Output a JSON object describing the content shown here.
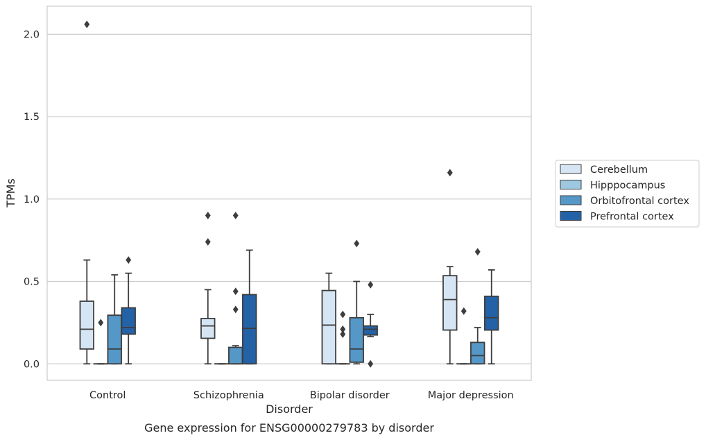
{
  "chart_data": {
    "type": "box",
    "title": "",
    "caption": "Gene expression for ENSG00000279783 by disorder",
    "xlabel": "Disorder",
    "ylabel": "TPMs",
    "ylim": [
      -0.1,
      2.17
    ],
    "yticks": [
      0.0,
      0.5,
      1.0,
      1.5,
      2.0
    ],
    "ytick_labels": [
      "0.0",
      "0.5",
      "1.0",
      "1.5",
      "2.0"
    ],
    "grid": "horizontal",
    "legend_position": "right",
    "categories": [
      "Control",
      "Schizophrenia",
      "Bipolar disorder",
      "Major depression"
    ],
    "series": [
      {
        "name": "Cerebellum",
        "color": "#d6e5f3",
        "boxes": [
          {
            "whislo": 0.0,
            "q1": 0.09,
            "med": 0.21,
            "q3": 0.38,
            "whishi": 0.63,
            "fliers": [
              2.06
            ]
          },
          {
            "whislo": 0.0,
            "q1": 0.155,
            "med": 0.23,
            "q3": 0.275,
            "whishi": 0.45,
            "fliers": [
              0.74,
              0.9
            ]
          },
          {
            "whislo": 0.0,
            "q1": 0.0,
            "med": 0.235,
            "q3": 0.445,
            "whishi": 0.55,
            "fliers": []
          },
          {
            "whislo": 0.0,
            "q1": 0.205,
            "med": 0.39,
            "q3": 0.535,
            "whishi": 0.59,
            "fliers": [
              1.16
            ]
          }
        ]
      },
      {
        "name": "Hipppocampus",
        "color": "#9ec8e0",
        "boxes": [
          {
            "whislo": 0.0,
            "q1": 0.0,
            "med": 0.0,
            "q3": 0.0,
            "whishi": 0.0,
            "fliers": [
              0.25
            ]
          },
          {
            "whislo": 0.0,
            "q1": 0.0,
            "med": 0.0,
            "q3": 0.0,
            "whishi": 0.0,
            "fliers": []
          },
          {
            "whislo": 0.0,
            "q1": 0.0,
            "med": 0.0,
            "q3": 0.0,
            "whishi": 0.0,
            "fliers": [
              0.18,
              0.21,
              0.3
            ]
          },
          {
            "whislo": 0.0,
            "q1": 0.0,
            "med": 0.0,
            "q3": 0.0,
            "whishi": 0.0,
            "fliers": [
              0.32
            ]
          }
        ]
      },
      {
        "name": "Orbitofrontal cortex",
        "color": "#5597c7",
        "boxes": [
          {
            "whislo": 0.0,
            "q1": 0.0,
            "med": 0.09,
            "q3": 0.295,
            "whishi": 0.54,
            "fliers": []
          },
          {
            "whislo": 0.0,
            "q1": 0.0,
            "med": 0.0,
            "q3": 0.1,
            "whishi": 0.11,
            "fliers": [
              0.33,
              0.44,
              0.9
            ]
          },
          {
            "whislo": 0.0,
            "q1": 0.01,
            "med": 0.09,
            "q3": 0.28,
            "whishi": 0.5,
            "fliers": [
              0.73
            ]
          },
          {
            "whislo": 0.0,
            "q1": 0.0,
            "med": 0.05,
            "q3": 0.13,
            "whishi": 0.22,
            "fliers": [
              0.68
            ]
          }
        ]
      },
      {
        "name": "Prefrontal cortex",
        "color": "#2462a7",
        "boxes": [
          {
            "whislo": 0.0,
            "q1": 0.18,
            "med": 0.22,
            "q3": 0.34,
            "whishi": 0.55,
            "fliers": [
              0.63
            ]
          },
          {
            "whislo": 0.0,
            "q1": 0.0,
            "med": 0.215,
            "q3": 0.42,
            "whishi": 0.69,
            "fliers": []
          },
          {
            "whislo": 0.165,
            "q1": 0.175,
            "med": 0.21,
            "q3": 0.23,
            "whishi": 0.3,
            "fliers": [
              0.0,
              0.48
            ]
          },
          {
            "whislo": 0.0,
            "q1": 0.205,
            "med": 0.28,
            "q3": 0.41,
            "whishi": 0.57,
            "fliers": []
          }
        ]
      }
    ]
  }
}
